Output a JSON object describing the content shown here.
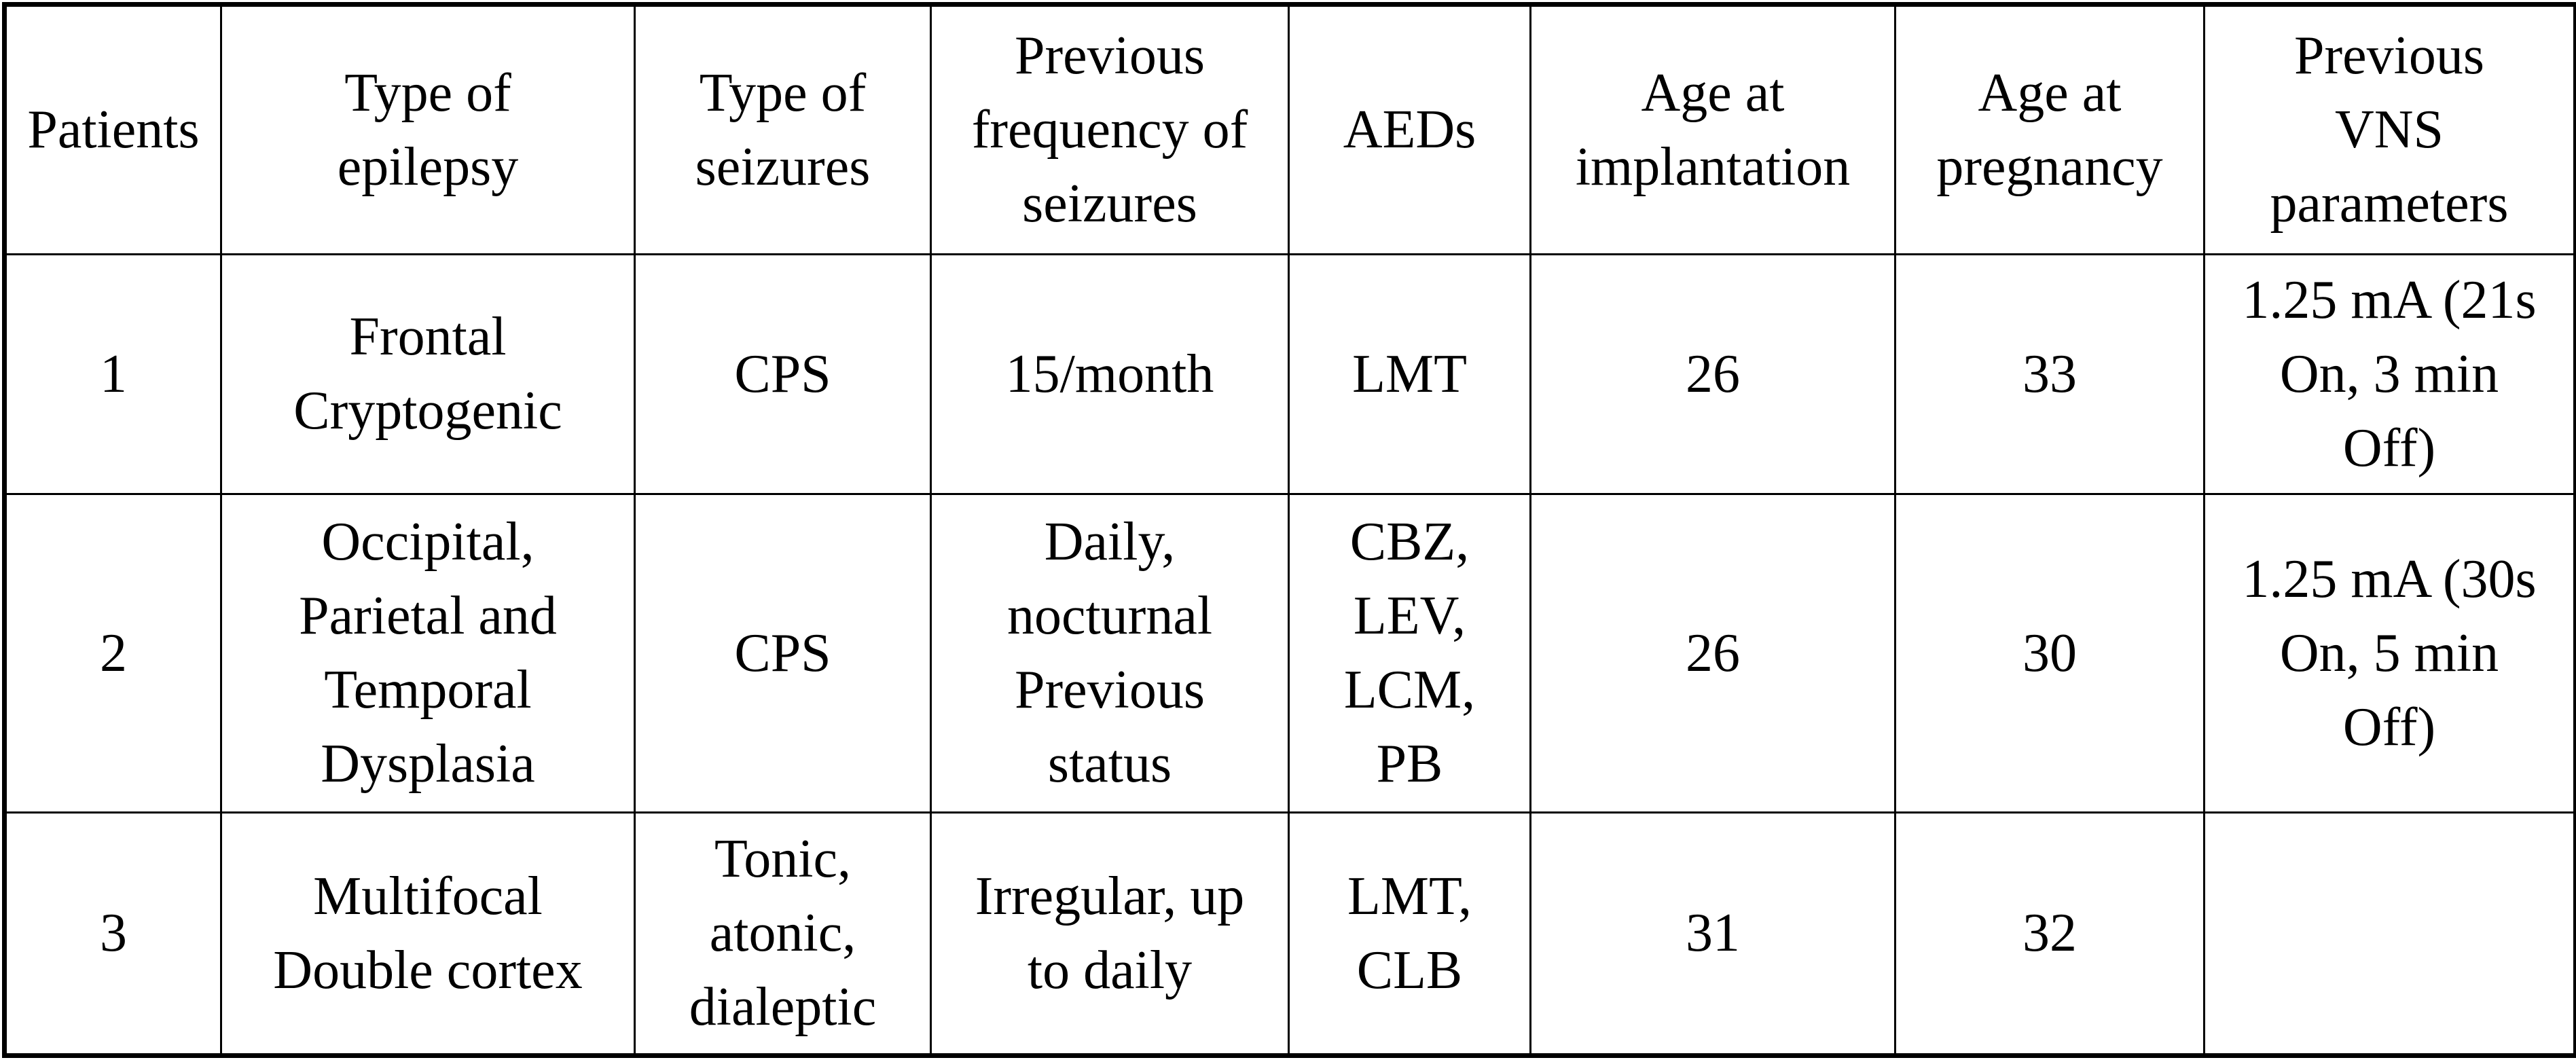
{
  "table": {
    "header": [
      "Patients",
      "Type of\nepilepsy",
      "Type of\nseizures",
      "Previous\nfrequency of\nseizures",
      "AEDs",
      "Age at\nimplantation",
      "Age at\npregnancy",
      "Previous\nVNS\nparameters"
    ],
    "rows": [
      [
        "1",
        "Frontal\nCryptogenic",
        "CPS",
        "15/month",
        "LMT",
        "26",
        "33",
        "1.25 mA (21s\nOn, 3 min\nOff)"
      ],
      [
        "2",
        "Occipital,\nParietal and\nTemporal\nDysplasia",
        "CPS",
        "Daily,\nnocturnal\nPrevious\nstatus",
        "CBZ,\nLEV,\nLCM,\nPB",
        "26",
        "30",
        "1.25 mA (30s\nOn, 5 min\nOff)"
      ],
      [
        "3",
        "Multifocal\nDouble cortex",
        "Tonic,\natonic,\ndialeptic",
        "Irregular, up\nto daily",
        "LMT,\nCLB",
        "31",
        "32",
        ""
      ]
    ]
  }
}
